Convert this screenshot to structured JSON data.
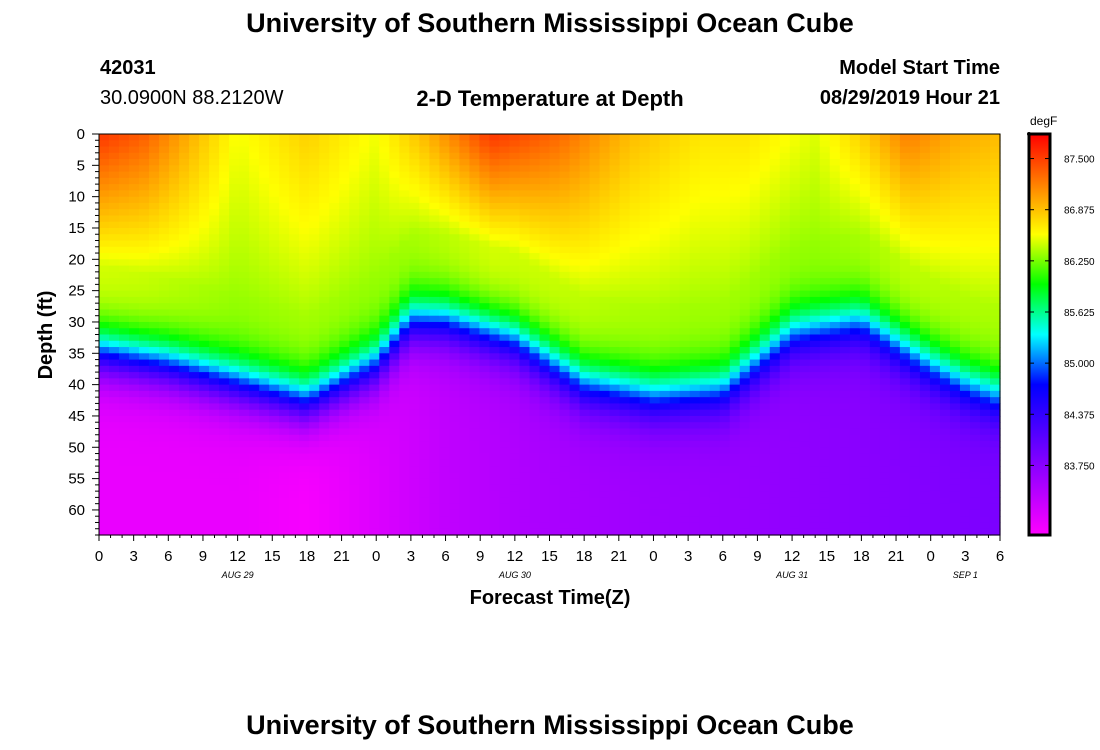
{
  "page": {
    "title_top": "University of Southern Mississippi Ocean Cube",
    "title_bottom": "University of Southern Mississippi Ocean Cube",
    "station_id": "42031",
    "coordinates": "30.0900N 88.2120W",
    "plot_title": "2-D Temperature at Depth",
    "model_start_label": "Model Start Time",
    "model_start_value": "08/29/2019 Hour 21"
  },
  "chart_data": {
    "type": "heatmap",
    "title": "2-D Temperature at Depth",
    "xlabel": "Forecast Time(Z)",
    "ylabel": "Depth (ft)",
    "x_tick_labels": [
      "0",
      "3",
      "6",
      "9",
      "12",
      "15",
      "18",
      "21",
      "0",
      "3",
      "6",
      "9",
      "12",
      "15",
      "18",
      "21",
      "0",
      "3",
      "6",
      "9",
      "12",
      "15",
      "18",
      "21",
      "0",
      "3",
      "6"
    ],
    "date_labels": [
      {
        "label": "AUG 29",
        "tick_index": 4
      },
      {
        "label": "AUG 30",
        "tick_index": 12
      },
      {
        "label": "AUG 31",
        "tick_index": 20
      },
      {
        "label": "SEP 1",
        "tick_index": 25
      }
    ],
    "y_ticks": [
      0,
      5,
      10,
      15,
      20,
      25,
      30,
      35,
      40,
      45,
      50,
      55,
      60
    ],
    "ylim": [
      0,
      64
    ],
    "forecast_hours_range": [
      0,
      78
    ],
    "colorbar": {
      "unit": "degF",
      "labels": [
        "87.500",
        "86.875",
        "86.250",
        "85.625",
        "85.000",
        "84.375",
        "83.750"
      ],
      "range": [
        82.9,
        87.8
      ]
    },
    "thermocline_depth_ft": {
      "forecast_hours": [
        0,
        6,
        12,
        18,
        24,
        27,
        30,
        36,
        42,
        48,
        54,
        60,
        66,
        72,
        75,
        78
      ],
      "depths": [
        35,
        37,
        40,
        43,
        37,
        30,
        30,
        33,
        40,
        42,
        41,
        32,
        30,
        37,
        40,
        42
      ]
    },
    "surface_temperature_degF": {
      "forecast_hours": [
        0,
        4,
        8,
        12,
        18,
        24,
        28,
        34,
        40,
        46,
        52,
        56,
        62,
        66,
        70,
        74,
        78
      ],
      "values": [
        87.55,
        87.35,
        86.95,
        86.55,
        86.8,
        86.55,
        86.9,
        87.55,
        87.3,
        86.9,
        86.7,
        86.7,
        86.5,
        86.8,
        87.2,
        87.0,
        86.9
      ]
    },
    "deep_temperature_degF": {
      "forecast_hours": [
        0,
        8,
        12,
        18,
        24,
        30,
        38,
        48,
        56,
        66,
        72,
        78
      ],
      "values": [
        83.05,
        83.05,
        83.05,
        82.95,
        83.15,
        83.35,
        83.5,
        83.6,
        83.65,
        83.75,
        83.8,
        83.85
      ]
    }
  }
}
